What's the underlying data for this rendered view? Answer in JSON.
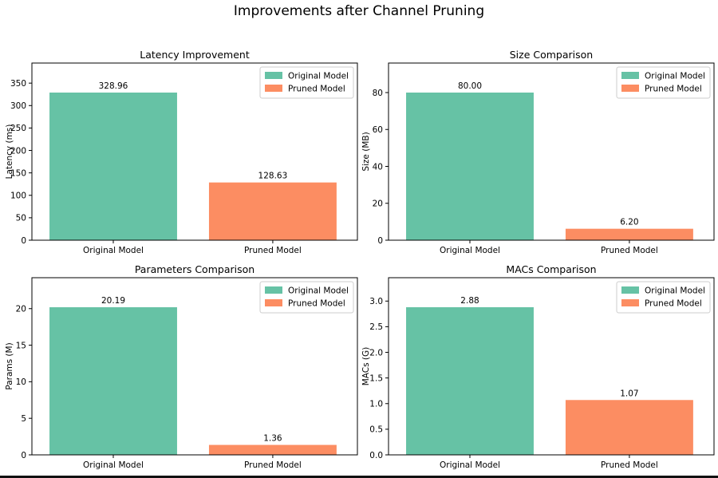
{
  "figure_title": "Improvements after Channel Pruning",
  "colors": {
    "original": "#66c2a5",
    "pruned": "#fc8d62"
  },
  "chart_data": [
    {
      "type": "bar",
      "title": "Latency Improvement",
      "ylabel": "Latency (ms)",
      "xlabel": "",
      "categories": [
        "Original Model",
        "Pruned Model"
      ],
      "values": [
        328.96,
        128.63
      ],
      "value_labels": [
        "328.96",
        "128.63"
      ],
      "ylim": [
        0,
        394.75
      ],
      "yticks": [
        0,
        50,
        100,
        150,
        200,
        250,
        300,
        350
      ],
      "ytick_labels": [
        "0",
        "50",
        "100",
        "150",
        "200",
        "250",
        "300",
        "350"
      ],
      "legend": [
        "Original Model",
        "Pruned Model"
      ],
      "legend_loc": "upper right",
      "grid": false
    },
    {
      "type": "bar",
      "title": "Size Comparison",
      "ylabel": "Size (MB)",
      "xlabel": "",
      "categories": [
        "Original Model",
        "Pruned Model"
      ],
      "values": [
        80.0,
        6.2
      ],
      "value_labels": [
        "80.00",
        "6.20"
      ],
      "ylim": [
        0,
        96
      ],
      "yticks": [
        0,
        20,
        40,
        60,
        80
      ],
      "ytick_labels": [
        "0",
        "20",
        "40",
        "60",
        "80"
      ],
      "legend": [
        "Original Model",
        "Pruned Model"
      ],
      "legend_loc": "upper right",
      "grid": false
    },
    {
      "type": "bar",
      "title": "Parameters Comparison",
      "ylabel": "Params (M)",
      "xlabel": "",
      "categories": [
        "Original Model",
        "Pruned Model"
      ],
      "values": [
        20.19,
        1.36
      ],
      "value_labels": [
        "20.19",
        "1.36"
      ],
      "ylim": [
        0,
        24.23
      ],
      "yticks": [
        0,
        5,
        10,
        15,
        20
      ],
      "ytick_labels": [
        "0",
        "5",
        "10",
        "15",
        "20"
      ],
      "legend": [
        "Original Model",
        "Pruned Model"
      ],
      "legend_loc": "upper right",
      "grid": false
    },
    {
      "type": "bar",
      "title": "MACs Comparison",
      "ylabel": "MACs (G)",
      "xlabel": "",
      "categories": [
        "Original Model",
        "Pruned Model"
      ],
      "values": [
        2.88,
        1.07
      ],
      "value_labels": [
        "2.88",
        "1.07"
      ],
      "ylim": [
        0,
        3.456
      ],
      "yticks": [
        0,
        0.5,
        1.0,
        1.5,
        2.0,
        2.5,
        3.0
      ],
      "ytick_labels": [
        "0.0",
        "0.5",
        "1.0",
        "1.5",
        "2.0",
        "2.5",
        "3.0"
      ],
      "legend": [
        "Original Model",
        "Pruned Model"
      ],
      "legend_loc": "upper right",
      "grid": false
    }
  ]
}
